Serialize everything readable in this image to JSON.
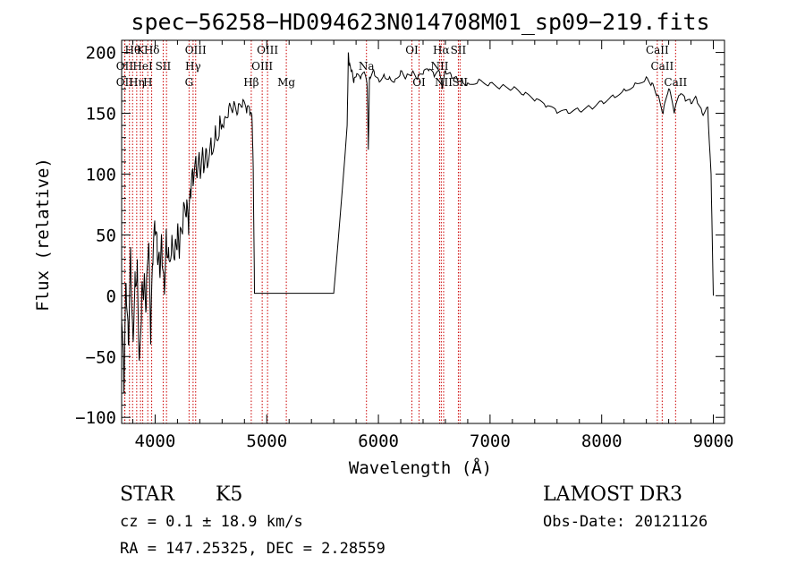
{
  "chart_data": {
    "type": "line",
    "title": "spec−56258−HD094623N014708M01_sp09−219.fits",
    "xlabel": "Wavelength (Å)",
    "ylabel": "Flux (relative)",
    "xlim": [
      3700,
      9100
    ],
    "ylim": [
      -105,
      210
    ],
    "x_ticks": [
      4000,
      5000,
      6000,
      7000,
      8000,
      9000
    ],
    "x_tick_labels": [
      "4000",
      "5000",
      "6000",
      "7000",
      "8000",
      "9000"
    ],
    "y_ticks": [
      -100,
      -50,
      0,
      50,
      100,
      150,
      200
    ],
    "y_tick_labels": [
      "−100",
      "−50",
      "0",
      "50",
      "100",
      "150",
      "200"
    ],
    "grid": false,
    "series": [
      {
        "color": "#000000",
        "x": [
          3700,
          3720,
          3740,
          3760,
          3780,
          3800,
          3820,
          3840,
          3860,
          3880,
          3900,
          3920,
          3940,
          3960,
          3980,
          4000,
          4020,
          4040,
          4060,
          4080,
          4100,
          4120,
          4150,
          4180,
          4200,
          4220,
          4250,
          4280,
          4300,
          4320,
          4340,
          4370,
          4400,
          4430,
          4460,
          4500,
          4540,
          4580,
          4620,
          4660,
          4700,
          4740,
          4780,
          4820,
          4850,
          4870,
          4880,
          4890,
          5000,
          5200,
          5400,
          5600,
          5720,
          5730,
          5740,
          5760,
          5780,
          5800,
          5840,
          5880,
          5900,
          5910,
          5920,
          5960,
          6000,
          6050,
          6100,
          6150,
          6200,
          6250,
          6300,
          6350,
          6400,
          6450,
          6500,
          6550,
          6570,
          6600,
          6650,
          6700,
          6750,
          6800,
          6900,
          7000,
          7100,
          7200,
          7300,
          7400,
          7500,
          7600,
          7700,
          7800,
          7900,
          8000,
          8100,
          8200,
          8300,
          8400,
          8450,
          8500,
          8550,
          8600,
          8650,
          8700,
          8750,
          8800,
          8850,
          8900,
          8950,
          8980,
          9000
        ],
        "y": [
          -20,
          -80,
          10,
          -40,
          40,
          -30,
          20,
          30,
          -50,
          5,
          10,
          -10,
          40,
          -40,
          25,
          50,
          30,
          20,
          45,
          10,
          55,
          40,
          50,
          45,
          55,
          40,
          60,
          65,
          50,
          80,
          90,
          100,
          105,
          115,
          120,
          130,
          140,
          148,
          145,
          155,
          155,
          150,
          155,
          150,
          148,
          140,
          90,
          2,
          2,
          2,
          2,
          2,
          140,
          200,
          190,
          185,
          175,
          180,
          178,
          182,
          170,
          120,
          180,
          185,
          178,
          182,
          180,
          178,
          185,
          180,
          183,
          178,
          182,
          185,
          180,
          183,
          170,
          185,
          182,
          180,
          178,
          175,
          178,
          175,
          172,
          170,
          165,
          160,
          155,
          150,
          150,
          152,
          155,
          160,
          165,
          170,
          175,
          180,
          175,
          165,
          150,
          170,
          150,
          165,
          160,
          158,
          162,
          150,
          155,
          100,
          0
        ]
      }
    ],
    "line_labels": [
      {
        "wave": 3799,
        "text": "Hθ",
        "row": 0
      },
      {
        "wave": 3870,
        "text": "K",
        "row": 0
      },
      {
        "wave": 3970,
        "text": "Hδ",
        "row": 0
      },
      {
        "wave": 4363,
        "text": "OIII",
        "row": 0
      },
      {
        "wave": 5007,
        "text": "OIII",
        "row": 0
      },
      {
        "wave": 6300,
        "text": "OI",
        "row": 0
      },
      {
        "wave": 6563,
        "text": "Hα",
        "row": 0
      },
      {
        "wave": 6716,
        "text": "SII",
        "row": 0
      },
      {
        "wave": 8498,
        "text": "CaII",
        "row": 0
      },
      {
        "wave": 3727,
        "text": "OII",
        "row": 1
      },
      {
        "wave": 3889,
        "text": "HeI",
        "row": 1
      },
      {
        "wave": 4072,
        "text": "SII",
        "row": 1
      },
      {
        "wave": 4340,
        "text": "Hγ",
        "row": 1
      },
      {
        "wave": 4959,
        "text": "OIII",
        "row": 1
      },
      {
        "wave": 5893,
        "text": "Na",
        "row": 1
      },
      {
        "wave": 6548,
        "text": "NII",
        "row": 1
      },
      {
        "wave": 8542,
        "text": "CaII",
        "row": 1
      },
      {
        "wave": 3727,
        "text": "OII",
        "row": 2
      },
      {
        "wave": 3835,
        "text": "Hη",
        "row": 2
      },
      {
        "wave": 3934,
        "text": "H",
        "row": 2
      },
      {
        "wave": 4304,
        "text": "G",
        "row": 2
      },
      {
        "wave": 4861,
        "text": "Hβ",
        "row": 2
      },
      {
        "wave": 5175,
        "text": "Mg",
        "row": 2
      },
      {
        "wave": 6364,
        "text": "OI",
        "row": 2
      },
      {
        "wave": 6584,
        "text": "NII",
        "row": 2
      },
      {
        "wave": 6731,
        "text": "SII",
        "row": 2
      },
      {
        "wave": 8662,
        "text": "CaII",
        "row": 2
      }
    ],
    "marker_lines": [
      3727,
      3729,
      3770,
      3798,
      3835,
      3869,
      3889,
      3934,
      3969,
      4072,
      4102,
      4304,
      4340,
      4363,
      4861,
      4959,
      5007,
      5175,
      5893,
      6300,
      6364,
      6548,
      6563,
      6584,
      6716,
      6731,
      8498,
      8542,
      8662
    ],
    "marker_color": "#cc0000",
    "axis_color": "#000000"
  },
  "info": {
    "class": "STAR",
    "subclass": "K5",
    "survey": "LAMOST DR3",
    "cz": "cz = 0.1 ± 18.9 km/s",
    "obs_date": "Obs-Date: 20121126",
    "radec": "RA = 147.25325, DEC =   2.28559"
  }
}
